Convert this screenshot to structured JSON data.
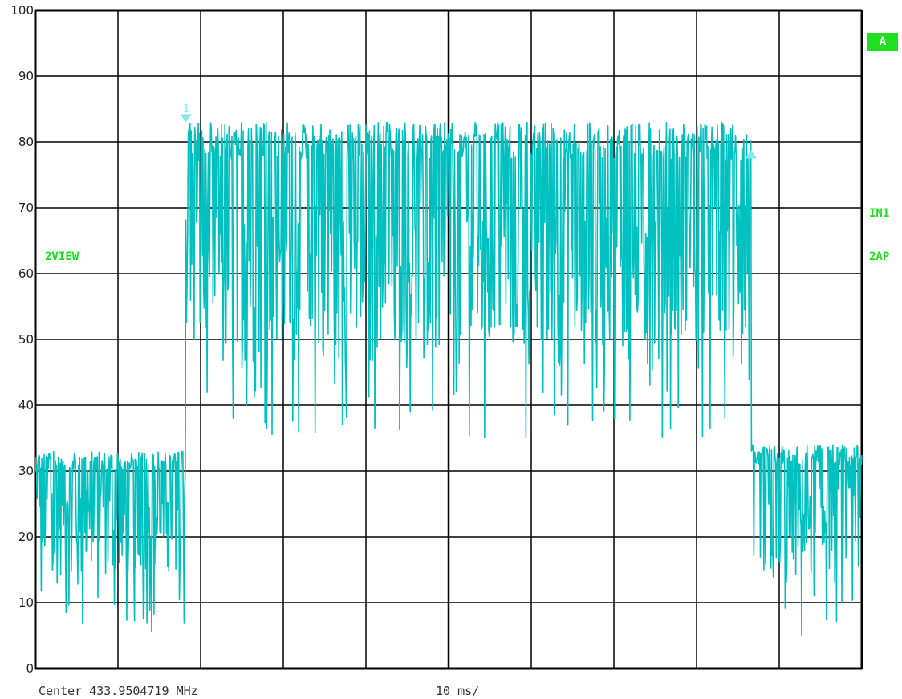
{
  "chart_data": {
    "type": "line",
    "ylim": [
      0,
      100
    ],
    "xlim": [
      0,
      100
    ],
    "y_ticks": [
      "100",
      "90",
      "80",
      "70",
      "60",
      "50",
      "40",
      "30",
      "20",
      "10",
      "0"
    ],
    "grid": true,
    "trace_color": "#00c0c0",
    "marker_label": "1",
    "segments": [
      {
        "x_start": 0,
        "x_end": 18.2,
        "y_min": 5,
        "y_max": 33,
        "y_center": 21
      },
      {
        "x_start": 18.2,
        "x_end": 86.6,
        "y_min": 35,
        "y_max": 83,
        "y_center": 60
      },
      {
        "x_start": 86.6,
        "x_end": 100,
        "y_min": 3,
        "y_max": 34,
        "y_center": 21
      }
    ],
    "markers": [
      {
        "x": 18.2,
        "y": 83,
        "shape": "down-triangle"
      },
      {
        "x": 86.6,
        "y": 78,
        "shape": "up-triangle"
      }
    ]
  },
  "labels": {
    "badge": "A",
    "view": "2VIEW",
    "in1": "IN1",
    "ap": "2AP",
    "center": "Center 433.9504719 MHz",
    "span": "10 ms/"
  },
  "colors": {
    "trace": "#00c0c0",
    "label_green": "#1ee01e",
    "grid": "#000000"
  }
}
